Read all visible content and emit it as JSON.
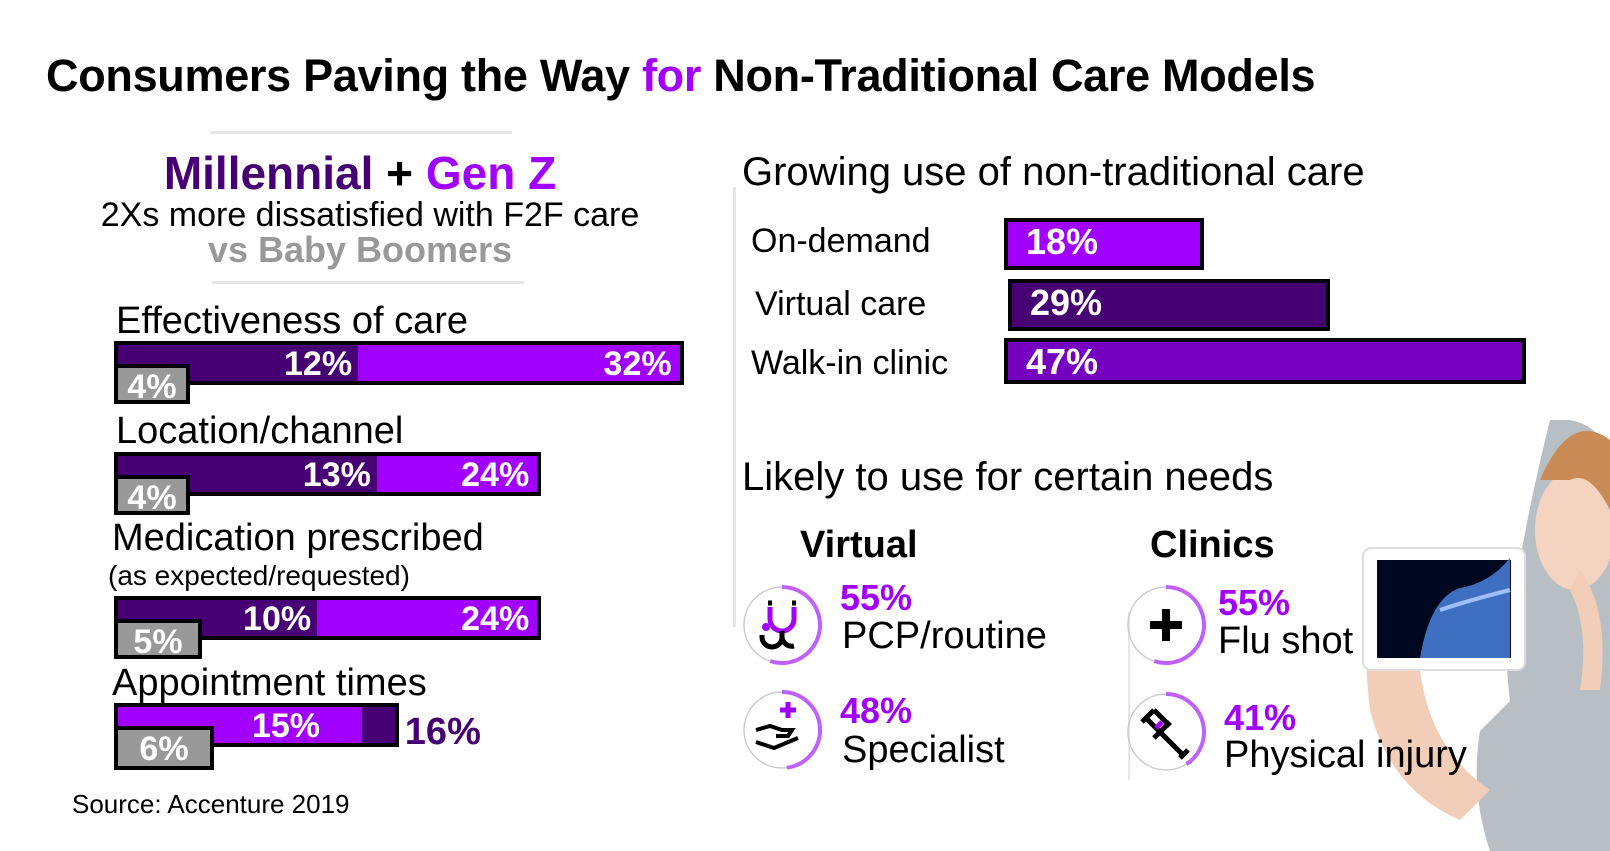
{
  "title": {
    "part1": "Consumers Paving the Way ",
    "accent": "for",
    "part2": " Non-Traditional Care Models"
  },
  "colors": {
    "millennial": "#460073",
    "genz": "#a100ff",
    "boomers": "#999999",
    "walkin": "#7500c0"
  },
  "left_panel": {
    "heading_millennial": "Millennial",
    "heading_plus": " + ",
    "heading_genz": "Gen Z",
    "subheading": "2Xs more dissatisfied with F2F care",
    "comparison": "vs Baby Boomers",
    "source": "Source: Accenture 2019"
  },
  "chart_data": [
    {
      "type": "bar",
      "title": "Millennial + Gen Z 2Xs more dissatisfied with F2F care vs Baby Boomers",
      "categories": [
        "Effectiveness of care",
        "Location/channel",
        "Medication prescribed",
        "Appointment times"
      ],
      "category_notes": [
        "",
        "",
        "(as expected/requested)",
        ""
      ],
      "series": [
        {
          "name": "Millennial",
          "values": [
            12,
            13,
            10,
            16
          ],
          "labels": [
            "12%",
            "13%",
            "10%",
            "16%"
          ]
        },
        {
          "name": "Gen Z",
          "values": [
            32,
            24,
            24,
            15
          ],
          "labels": [
            "32%",
            "24%",
            "24%",
            "15%"
          ]
        },
        {
          "name": "Baby Boomers",
          "values": [
            4,
            4,
            5,
            6
          ],
          "labels": [
            "4%",
            "4%",
            "5%",
            "6%"
          ]
        }
      ],
      "xlabel": "",
      "ylabel": "",
      "unit": "%"
    },
    {
      "type": "bar",
      "title": "Growing use of non-traditional care",
      "categories": [
        "On-demand",
        "Virtual care",
        "Walk-in clinic"
      ],
      "values": [
        18,
        29,
        47
      ],
      "labels": [
        "18%",
        "29%",
        "47%"
      ],
      "unit": "%"
    }
  ],
  "right_panel": {
    "needs_heading": "Likely to use for certain needs",
    "columns": [
      {
        "heading": "Virtual",
        "items": [
          {
            "percent": "55%",
            "value": 55,
            "label": "PCP/routine",
            "icon": "stethoscope-icon"
          },
          {
            "percent": "48%",
            "value": 48,
            "label": "Specialist",
            "icon": "hand-plus-icon"
          }
        ]
      },
      {
        "heading": "Clinics",
        "items": [
          {
            "percent": "55%",
            "value": 55,
            "label": "Flu shot",
            "icon": "plus-icon"
          },
          {
            "percent": "41%",
            "value": 41,
            "label": "Physical injury",
            "icon": "crutch-icon"
          }
        ]
      }
    ]
  }
}
